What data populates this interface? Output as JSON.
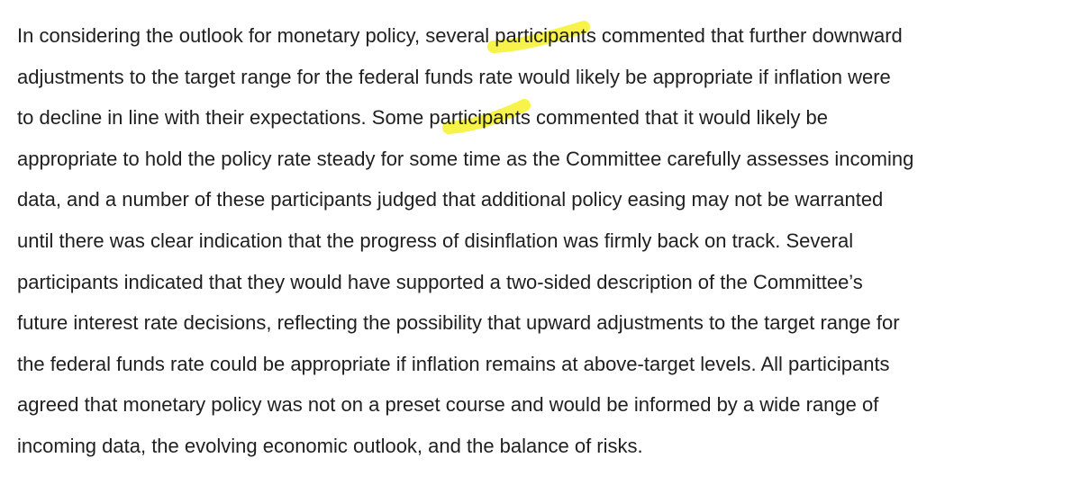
{
  "paragraph": {
    "lines": [
      "In considering the outlook for monetary policy, several participants commented that further downward",
      "adjustments to the target range for the federal funds rate would likely be appropriate if inflation were",
      "to decline in line with their expectations.  Some participants commented that it would likely be",
      "appropriate to hold the policy rate steady for some time as the Committee carefully assesses incoming",
      "data, and a number of these participants judged that additional policy easing may not be warranted",
      "until there was clear indication that the progress of disinflation was firmly back on track.  Several",
      "participants indicated that they would have supported a two-sided description of the Committee’s",
      "future interest rate decisions, reflecting the possibility that upward adjustments to the target range for",
      "the federal funds rate could be appropriate if inflation remains at above-target levels.  All participants",
      "agreed that monetary policy was not on a preset course and would be informed by a wide range of",
      "incoming data, the evolving economic outlook, and the balance of risks."
    ]
  },
  "highlights": {
    "color": "#f5f01e",
    "marked_words": [
      "several pa",
      "Some pa"
    ]
  }
}
